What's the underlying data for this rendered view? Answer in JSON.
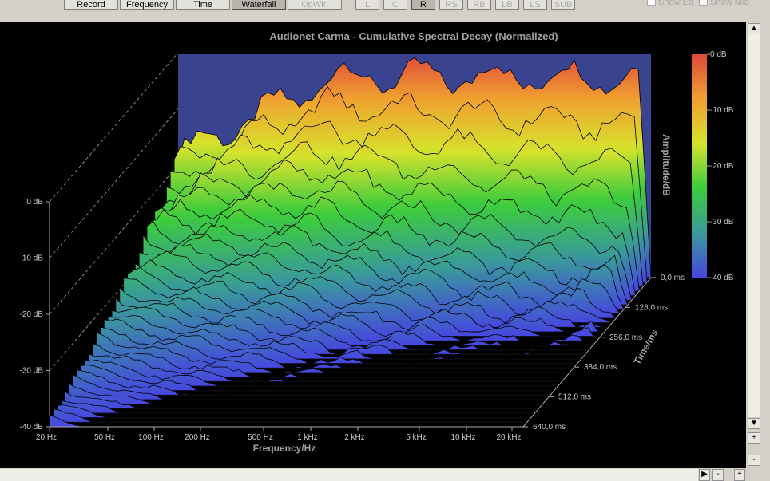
{
  "toolbar": {
    "buttons": [
      "Record",
      "Frequency",
      "Time",
      "Waterfall",
      "OpWin"
    ],
    "channels": [
      "L",
      "C",
      "R",
      "RS",
      "RB",
      "LB",
      "LS",
      "SUB"
    ],
    "checkboxes": [
      "Show Eq",
      "Show Mic"
    ]
  },
  "chart": {
    "title": "Audionet Carma - Cumulative Spectral Decay (Normalized)",
    "y_axis": {
      "ticks": [
        "0 dB",
        "-10 dB",
        "-20 dB",
        "-30 dB",
        "-40 dB"
      ]
    },
    "x_axis": {
      "label": "Frequency/Hz",
      "ticks": [
        "20 Hz",
        "50 Hz",
        "100 Hz",
        "200 Hz",
        "500 Hz",
        "1 kHz",
        "2 kHz",
        "5 kHz",
        "10 kHz",
        "20 kHz"
      ]
    },
    "z_axis": {
      "label": "Time/ms",
      "ticks": [
        "0,0 ms",
        "128,0 ms",
        "256,0 ms",
        "384,0 ms",
        "512,0 ms",
        "640,0 ms"
      ]
    },
    "colorbar": {
      "label": "Amplitude/dB",
      "ticks": [
        "0 dB",
        "-10 dB",
        "-20 dB",
        "-30 dB",
        "-40 dB"
      ]
    }
  },
  "scroll": {
    "vertical": [
      "+",
      "-"
    ],
    "horizontal": [
      "-",
      "+"
    ]
  }
}
